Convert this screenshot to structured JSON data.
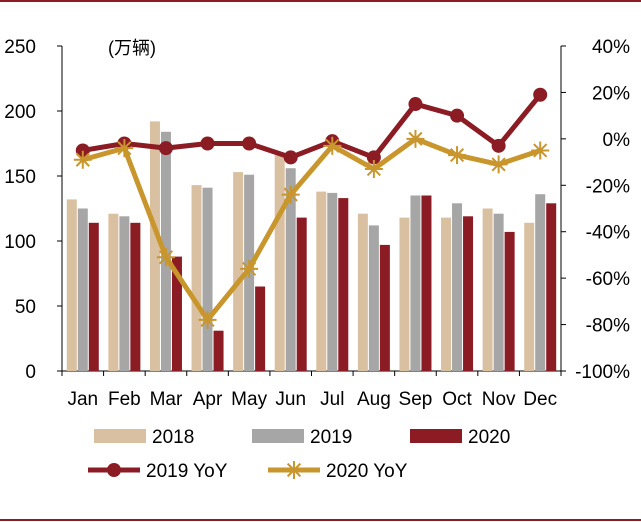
{
  "chart_data": {
    "type": "bar",
    "unit_label": "(万辆)",
    "categories": [
      "Jan",
      "Feb",
      "Mar",
      "Apr",
      "May",
      "Jun",
      "Jul",
      "Aug",
      "Sep",
      "Oct",
      "Nov",
      "Dec"
    ],
    "left_axis": {
      "ylim": [
        0,
        250
      ],
      "ticks": [
        "0",
        "50",
        "100",
        "150",
        "200",
        "250"
      ],
      "tick_values": [
        0,
        50,
        100,
        150,
        200,
        250
      ]
    },
    "right_axis": {
      "ylim": [
        -100,
        40
      ],
      "ticks": [
        "-100%",
        "-80%",
        "-60%",
        "-40%",
        "-20%",
        "0%",
        "20%",
        "40%"
      ],
      "tick_values": [
        -100,
        -80,
        -60,
        -40,
        -20,
        0,
        20,
        40
      ]
    },
    "series": [
      {
        "name": "2018",
        "kind": "bar",
        "axis": "left",
        "color": "#d9c0a0",
        "values": [
          132,
          121,
          192,
          143,
          153,
          166,
          138,
          121,
          118,
          118,
          125,
          114
        ]
      },
      {
        "name": "2019",
        "kind": "bar",
        "axis": "left",
        "color": "#a6a6a6",
        "values": [
          125,
          119,
          184,
          141,
          151,
          156,
          137,
          112,
          135,
          129,
          121,
          136
        ]
      },
      {
        "name": "2020",
        "kind": "bar",
        "axis": "left",
        "color": "#8b1c24",
        "values": [
          114,
          114,
          88,
          31,
          65,
          118,
          133,
          97,
          135,
          119,
          107,
          129
        ]
      },
      {
        "name": "2019 YoY",
        "kind": "line",
        "axis": "right",
        "color": "#8b1c24",
        "marker": "circle",
        "values": [
          -5,
          -2,
          -4,
          -2,
          -2,
          -8,
          -1,
          -8,
          15,
          10,
          -3,
          19
        ]
      },
      {
        "name": "2020 YoY",
        "kind": "line",
        "axis": "right",
        "color": "#c8962d",
        "marker": "star",
        "values": [
          -9,
          -4,
          -51,
          -78,
          -56,
          -24,
          -3,
          -13,
          0,
          -7,
          -11,
          -5
        ]
      }
    ]
  }
}
